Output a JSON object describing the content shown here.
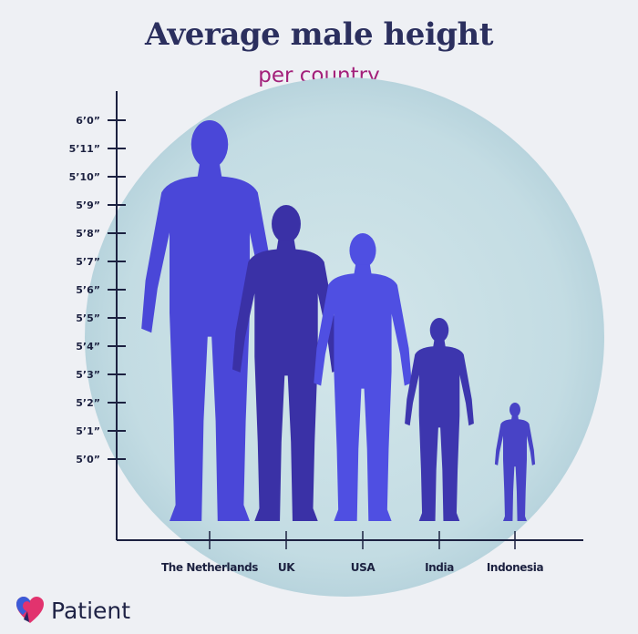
{
  "chart_data": {
    "type": "bar",
    "title": "Average male height",
    "subtitle": "per country",
    "categories": [
      "The Netherlands",
      "UK",
      "USA",
      "India",
      "Indonesia"
    ],
    "values_inches": [
      72,
      69,
      68,
      65,
      62
    ],
    "y_ticks": [
      {
        "inches": 72,
        "label": "6’0”"
      },
      {
        "inches": 71,
        "label": "5’11”"
      },
      {
        "inches": 70,
        "label": "5’10”"
      },
      {
        "inches": 69,
        "label": "5’9”"
      },
      {
        "inches": 68,
        "label": "5’8”"
      },
      {
        "inches": 67,
        "label": "5’7”"
      },
      {
        "inches": 66,
        "label": "5’6”"
      },
      {
        "inches": 65,
        "label": "5’5”"
      },
      {
        "inches": 64,
        "label": "5’4”"
      },
      {
        "inches": 63,
        "label": "5’3”"
      },
      {
        "inches": 62,
        "label": "5’2”"
      },
      {
        "inches": 61,
        "label": "5’1”"
      },
      {
        "inches": 60,
        "label": "5’0”"
      }
    ],
    "mark": "human-silhouette",
    "colors": [
      "#4a47d8",
      "#3a31a6",
      "#4f4fe2",
      "#3d36ae",
      "#4843c6"
    ],
    "grid": false,
    "legend": "none"
  },
  "brand": {
    "name": "Patient",
    "icon": "heart-logo-icon"
  }
}
